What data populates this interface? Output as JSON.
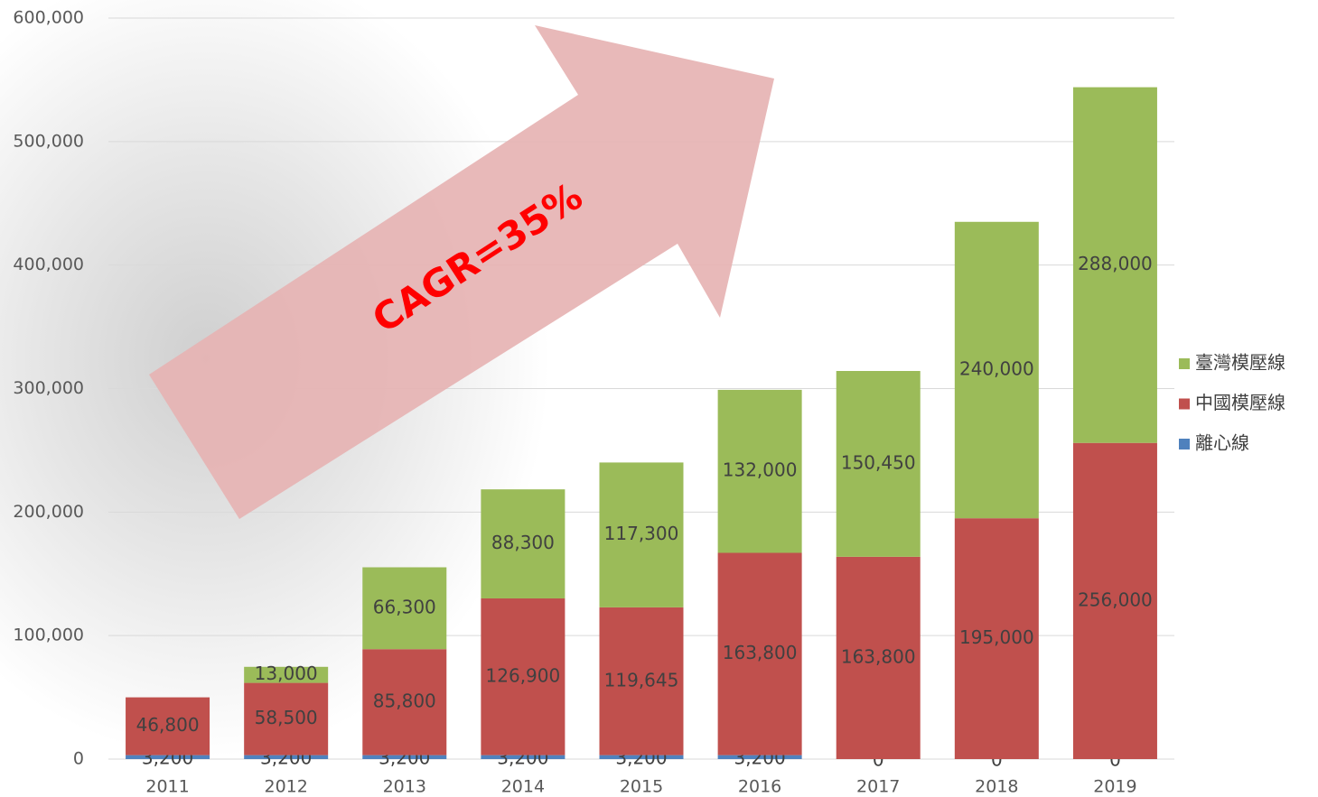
{
  "chart_data": {
    "type": "stacked-bar",
    "annotation": "CAGR=35%",
    "categories": [
      "2011",
      "2012",
      "2013",
      "2014",
      "2015",
      "2016",
      "2017",
      "2018",
      "2019"
    ],
    "series": [
      {
        "name": "離心線",
        "color": "#4f81bd",
        "values": [
          3200,
          3200,
          3200,
          3200,
          3200,
          3200,
          0,
          0,
          0
        ],
        "value_labels": [
          "3,200",
          "3,200",
          "3,200",
          "3,200",
          "3,200",
          "3,200",
          "0",
          "0",
          "0"
        ]
      },
      {
        "name": "中國模壓線",
        "color": "#c0504d",
        "values": [
          46800,
          58500,
          85800,
          126900,
          119645,
          163800,
          163800,
          195000,
          256000
        ],
        "value_labels": [
          "46,800",
          "58,500",
          "85,800",
          "126,900",
          "119,645",
          "163,800",
          "163,800",
          "195,000",
          "256,000"
        ]
      },
      {
        "name": "臺灣模壓線",
        "color": "#9bbb59",
        "values": [
          null,
          13000,
          66300,
          88300,
          117300,
          132000,
          150450,
          240000,
          288000
        ],
        "value_labels": [
          null,
          "13,000",
          "66,300",
          "88,300",
          "117,300",
          "132,000",
          "150,450",
          "240,000",
          "288,000"
        ]
      }
    ],
    "ylim": [
      0,
      600000
    ],
    "yticks": [
      0,
      {
        "value": 100000,
        "label": "100,000"
      },
      {
        "value": 200000,
        "label": "200,000"
      },
      {
        "value": 300000,
        "label": "300,000"
      },
      {
        "value": 400000,
        "label": "400,000"
      },
      {
        "value": 500000,
        "label": "500,000"
      },
      {
        "value": 600000,
        "label": "600,000"
      }
    ],
    "grid": true,
    "legend": "right"
  }
}
